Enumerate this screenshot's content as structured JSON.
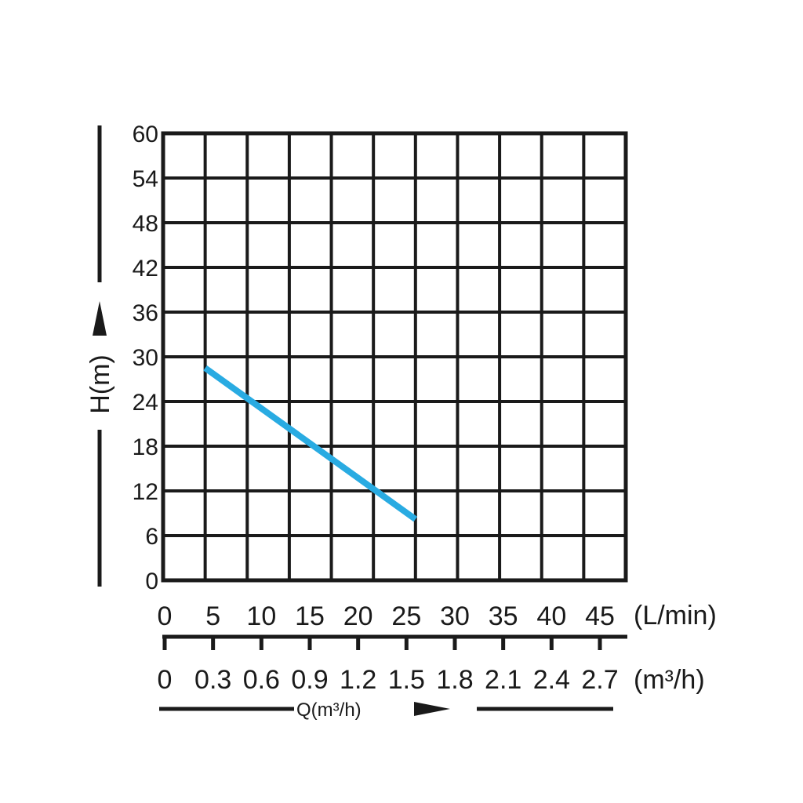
{
  "chart_data": {
    "type": "line",
    "ylabel": "H(m)",
    "xlabel": "Q(m³/h)",
    "y_ticks": [
      "0",
      "6",
      "12",
      "18",
      "24",
      "30",
      "36",
      "42",
      "48",
      "54",
      "60"
    ],
    "ylim": [
      0,
      60
    ],
    "x_ticks_lmin": [
      "0",
      "5",
      "10",
      "15",
      "20",
      "25",
      "30",
      "35",
      "40",
      "45"
    ],
    "x_unit_lmin": "(L/min)",
    "x_ticks_m3h": [
      "0",
      "0.3",
      "0.6",
      "0.9",
      "1.2",
      "1.5",
      "1.8",
      "2.1",
      "2.4",
      "2.7"
    ],
    "x_unit_m3h": "(m³/h)",
    "xlim_lmin": [
      0,
      55
    ],
    "grid": true,
    "series": [
      {
        "x": [
          5,
          30
        ],
        "y": [
          28.5,
          8.2
        ],
        "color": "#29abe2"
      }
    ]
  }
}
